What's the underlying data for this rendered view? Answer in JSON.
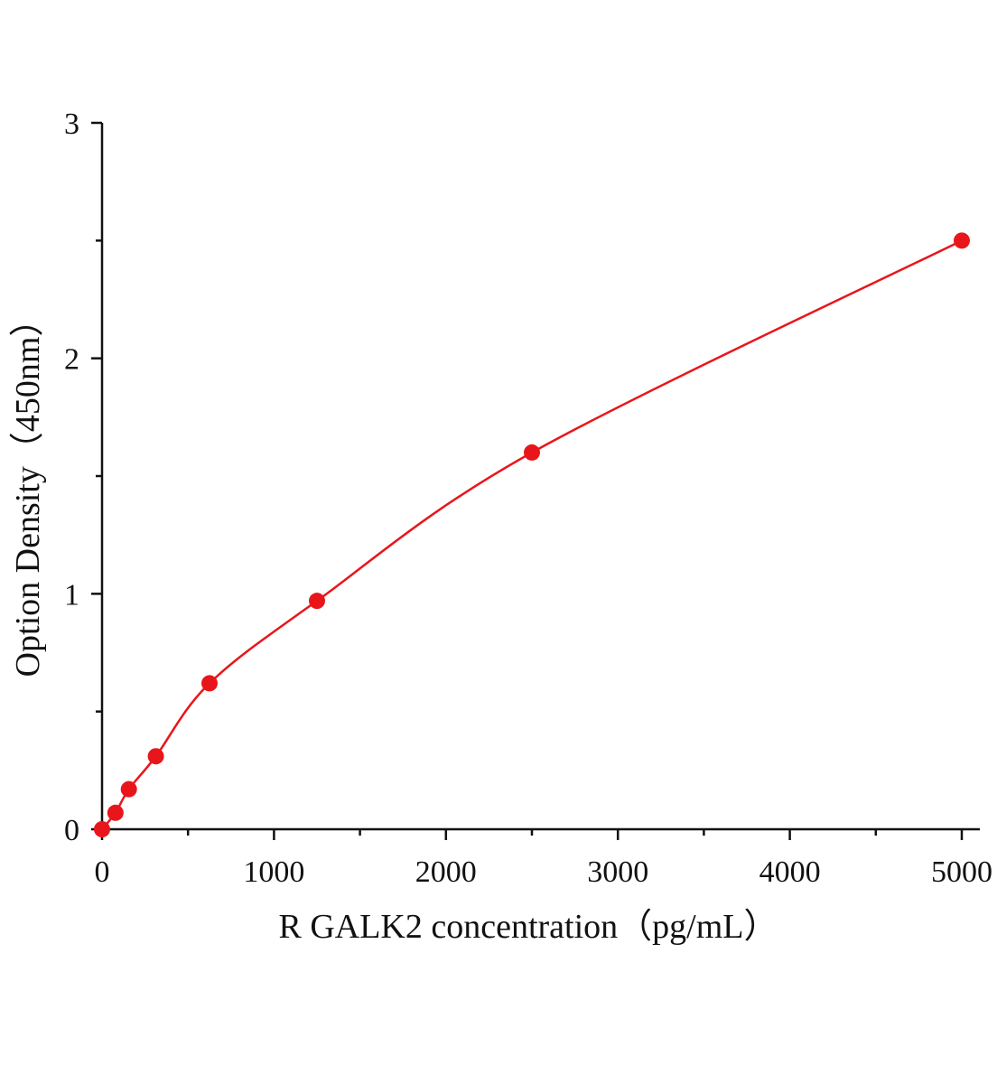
{
  "chart_data": {
    "type": "scatter",
    "title": "",
    "xlabel": "R GALK2  concentration（pg/mL）",
    "ylabel": "Option Density（450nm）",
    "xlim": [
      0,
      5000
    ],
    "ylim": [
      0,
      3
    ],
    "x_ticks": [
      0,
      1000,
      2000,
      3000,
      4000,
      5000
    ],
    "x_tick_labels": [
      "0",
      "1000",
      "2000",
      "3000",
      "4000",
      "5000"
    ],
    "y_ticks": [
      0,
      1,
      2,
      3
    ],
    "y_tick_labels": [
      "0",
      "1",
      "2",
      "3"
    ],
    "grid": false,
    "series": [
      {
        "color": "#e8161b",
        "points": [
          {
            "x": 0,
            "y": 0.0
          },
          {
            "x": 78,
            "y": 0.07
          },
          {
            "x": 156,
            "y": 0.17
          },
          {
            "x": 313,
            "y": 0.31
          },
          {
            "x": 625,
            "y": 0.62
          },
          {
            "x": 1250,
            "y": 0.97
          },
          {
            "x": 2500,
            "y": 1.6
          },
          {
            "x": 5000,
            "y": 2.5
          }
        ],
        "fit": "smooth curve through points"
      }
    ]
  }
}
